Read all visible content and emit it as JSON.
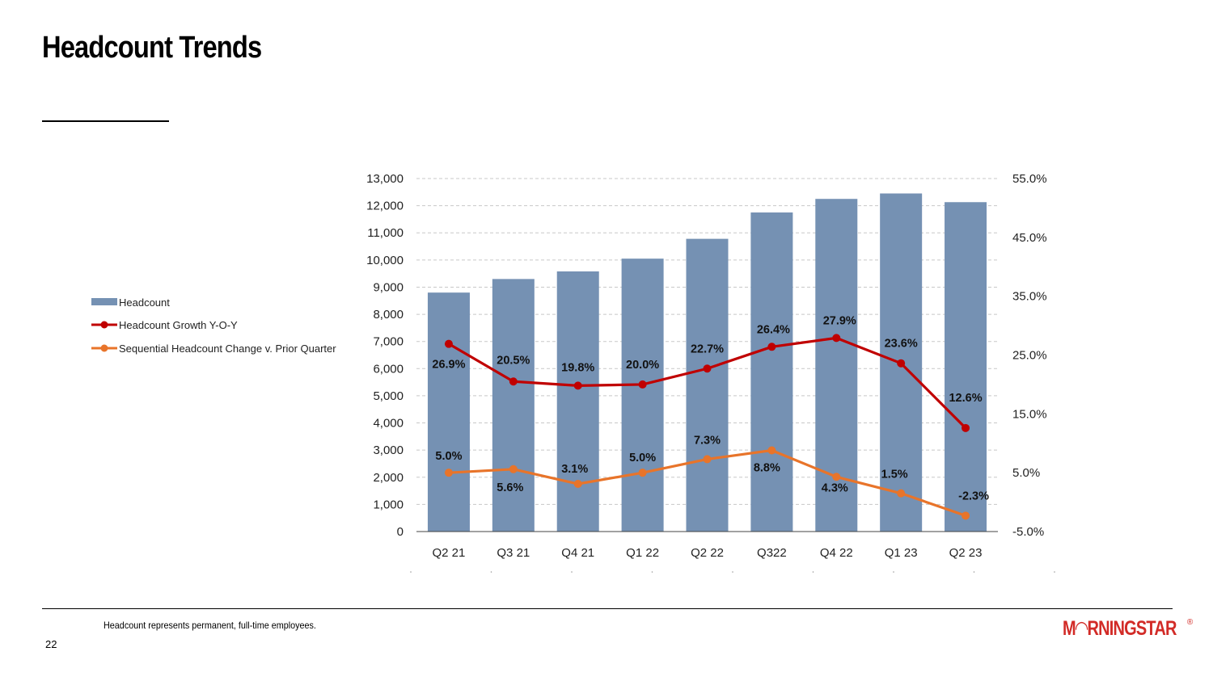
{
  "page": {
    "title": "Headcount Trends",
    "footnote": "Headcount represents permanent, full-time employees.",
    "page_number": "22",
    "logo_text": "M◠RNINGSTAR",
    "logo_mark": "®"
  },
  "colors": {
    "bar": "#7591b3",
    "yoy": "#c00000",
    "seq": "#e8742a",
    "grid": "#c8c8c8",
    "logo": "#d22b27"
  },
  "chart_data": {
    "type": "bar",
    "categories": [
      "Q2 21",
      "Q3 21",
      "Q4 21",
      "Q1 22",
      "Q2 22",
      "Q322",
      "Q4 22",
      "Q1 23",
      "Q2 23"
    ],
    "series": [
      {
        "name": "Headcount",
        "kind": "bar",
        "axis": "left",
        "values": [
          8800,
          9300,
          9580,
          10050,
          10780,
          11750,
          12250,
          12450,
          12130
        ]
      },
      {
        "name": "Headcount Growth Y-O-Y",
        "kind": "line",
        "axis": "right",
        "values": [
          26.9,
          20.5,
          19.8,
          20.0,
          22.7,
          26.4,
          27.9,
          23.6,
          12.6
        ],
        "labels": [
          "26.9%",
          "20.5%",
          "19.8%",
          "20.0%",
          "22.7%",
          "26.4%",
          "27.9%",
          "23.6%",
          "12.6%"
        ]
      },
      {
        "name": "Sequential Headcount Change v. Prior Quarter",
        "kind": "line",
        "axis": "right",
        "values": [
          5.0,
          5.6,
          3.1,
          5.0,
          7.3,
          8.8,
          4.3,
          1.5,
          -2.3
        ],
        "labels": [
          "5.0%",
          "5.6%",
          "3.1%",
          "5.0%",
          "7.3%",
          "8.8%",
          "4.3%",
          "1.5%",
          "-2.3%"
        ]
      }
    ],
    "left_axis": {
      "ylim": [
        0,
        13000
      ],
      "ticks": [
        0,
        1000,
        2000,
        3000,
        4000,
        5000,
        6000,
        7000,
        8000,
        9000,
        10000,
        11000,
        12000,
        13000
      ],
      "tick_labels": [
        "0",
        "1,000",
        "2,000",
        "3,000",
        "4,000",
        "5,000",
        "6,000",
        "7,000",
        "8,000",
        "9,000",
        "10,000",
        "11,000",
        "12,000",
        "13,000"
      ]
    },
    "right_axis": {
      "ylim": [
        -5,
        55
      ],
      "ticks": [
        -5,
        5,
        15,
        25,
        35,
        45,
        55
      ],
      "tick_labels": [
        "-5.0%",
        "5.0%",
        "15.0%",
        "25.0%",
        "35.0%",
        "45.0%",
        "55.0%"
      ]
    },
    "grid": true,
    "legend_position": "left"
  }
}
